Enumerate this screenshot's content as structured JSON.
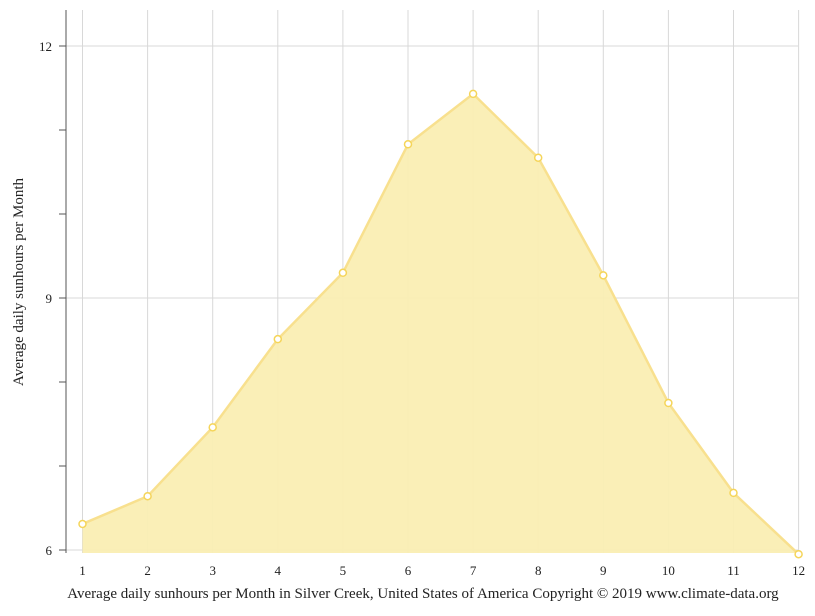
{
  "chart_data": {
    "type": "area",
    "title": "Average daily sunhours per Month in Silver Creek, United States of America Copyright © 2019 www.climate-data.org",
    "xlabel": "",
    "ylabel": "Average daily sunhours per Month",
    "x": [
      1,
      2,
      3,
      4,
      5,
      6,
      7,
      8,
      9,
      10,
      11,
      12
    ],
    "x_tick_labels": [
      "1",
      "2",
      "3",
      "4",
      "5",
      "6",
      "7",
      "8",
      "9",
      "10",
      "11",
      "12"
    ],
    "values": [
      6.31,
      6.64,
      7.46,
      8.51,
      9.3,
      10.83,
      11.43,
      10.67,
      9.27,
      7.75,
      6.68,
      5.95
    ],
    "ylim": [
      6,
      12.4
    ],
    "y_ticks": [
      6,
      7,
      8,
      9,
      10,
      11,
      12
    ],
    "y_tick_labels": [
      "6",
      "",
      "",
      "9",
      "",
      "",
      "12"
    ],
    "grid": true,
    "legend": "none",
    "colors": {
      "fill": "#faeeb3",
      "line": "#f8e08e",
      "marker": "#f5d55a",
      "grid": "#d8d8d8",
      "axis": "#555555"
    }
  }
}
